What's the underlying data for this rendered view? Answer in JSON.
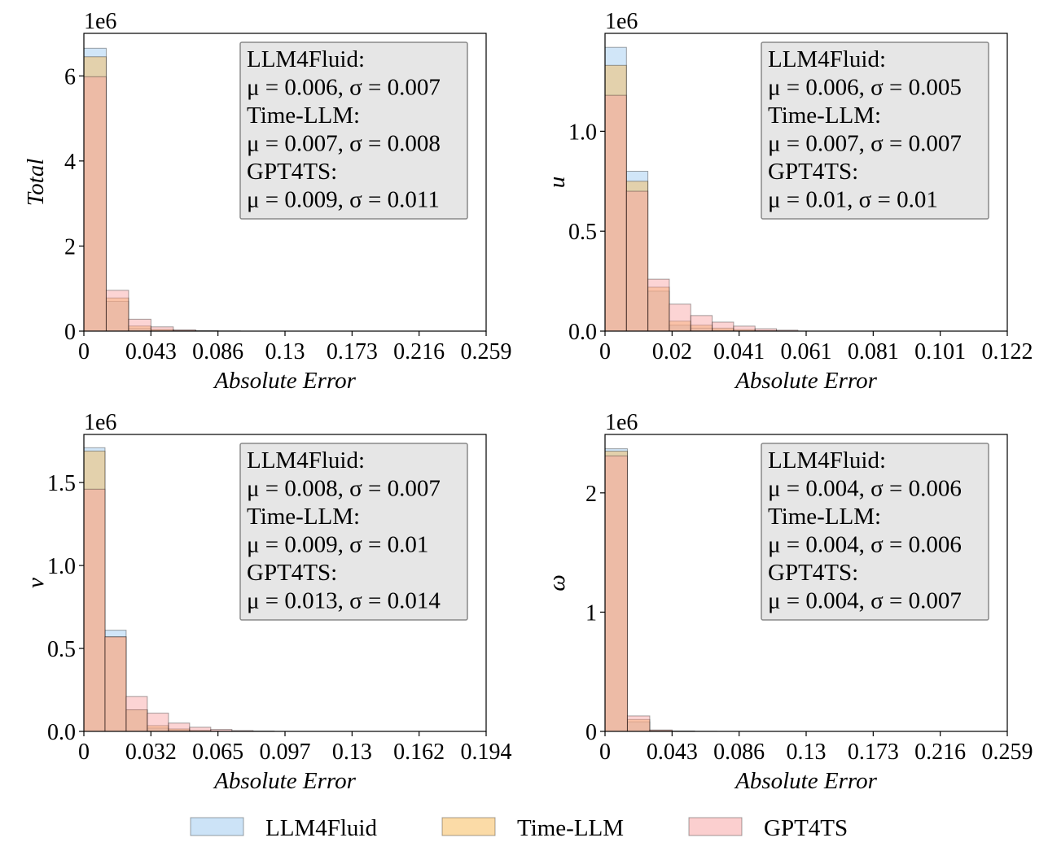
{
  "legend": {
    "entries": [
      {
        "label": "LLM4Fluid",
        "color": "#99c8f0"
      },
      {
        "label": "Time-LLM",
        "color": "#f8b850"
      },
      {
        "label": "GPT4TS",
        "color": "#f8a0a0"
      }
    ]
  },
  "chart_data": [
    {
      "type": "histogram",
      "ylabel": "Total",
      "xlabel": "Absolute Error",
      "y_scale_label": "1e6",
      "x_tick_labels": [
        "0",
        "0.043",
        "0.086",
        "0.13",
        "0.173",
        "0.216",
        "0.259"
      ],
      "xlim": [
        0,
        0.259
      ],
      "ylim": [
        0,
        7.0
      ],
      "y_ticks": [
        0,
        2,
        4,
        6
      ],
      "y_tick_labels": [
        "0",
        "2",
        "4",
        "6"
      ],
      "bin_width": 0.0144,
      "series": [
        {
          "name": "LLM4Fluid",
          "values": [
            6.65,
            0.7,
            0.06,
            0.02,
            0.01,
            0,
            0
          ]
        },
        {
          "name": "Time-LLM",
          "values": [
            6.45,
            0.78,
            0.12,
            0.04,
            0.015,
            0.005,
            0
          ]
        },
        {
          "name": "GPT4TS",
          "values": [
            5.98,
            0.96,
            0.28,
            0.1,
            0.03,
            0.01,
            0.005
          ]
        }
      ],
      "stats_box": [
        "LLM4Fluid:",
        "μ = 0.006, σ = 0.007",
        "Time-LLM:",
        "μ = 0.007, σ = 0.008",
        "GPT4TS:",
        "μ = 0.009, σ = 0.011"
      ]
    },
    {
      "type": "histogram",
      "ylabel": "u",
      "xlabel": "Absolute Error",
      "y_scale_label": "1e6",
      "x_tick_labels": [
        "0",
        "0.02",
        "0.041",
        "0.061",
        "0.081",
        "0.101",
        "0.122"
      ],
      "xlim": [
        0,
        0.122
      ],
      "ylim": [
        0,
        1.49
      ],
      "y_ticks": [
        0,
        0.5,
        1.0
      ],
      "y_tick_labels": [
        "0.0",
        "0.5",
        "1.0"
      ],
      "bin_width": 0.0065,
      "series": [
        {
          "name": "LLM4Fluid",
          "values": [
            1.42,
            0.8,
            0.2,
            0.03,
            0.015,
            0.005,
            0.002,
            0.001
          ]
        },
        {
          "name": "Time-LLM",
          "values": [
            1.33,
            0.75,
            0.22,
            0.05,
            0.03,
            0.015,
            0.008,
            0.003
          ]
        },
        {
          "name": "GPT4TS",
          "values": [
            1.18,
            0.7,
            0.26,
            0.135,
            0.078,
            0.045,
            0.025,
            0.012,
            0.005
          ]
        }
      ],
      "stats_box": [
        "LLM4Fluid:",
        "μ = 0.006, σ = 0.005",
        "Time-LLM:",
        "μ = 0.007, σ = 0.007",
        "GPT4TS:",
        "μ = 0.01, σ = 0.01"
      ]
    },
    {
      "type": "histogram",
      "ylabel": "v",
      "xlabel": "Absolute Error",
      "y_scale_label": "1e6",
      "x_tick_labels": [
        "0",
        "0.032",
        "0.065",
        "0.097",
        "0.13",
        "0.162",
        "0.194"
      ],
      "xlim": [
        0,
        0.194
      ],
      "ylim": [
        0,
        1.79
      ],
      "y_ticks": [
        0,
        0.5,
        1.0,
        1.5
      ],
      "y_tick_labels": [
        "0.0",
        "0.5",
        "1.0",
        "1.5"
      ],
      "bin_width": 0.0102,
      "series": [
        {
          "name": "LLM4Fluid",
          "values": [
            1.71,
            0.61,
            0.13,
            0.02,
            0.008,
            0.003
          ]
        },
        {
          "name": "Time-LLM",
          "values": [
            1.69,
            0.57,
            0.13,
            0.035,
            0.015,
            0.006,
            0.002
          ]
        },
        {
          "name": "GPT4TS",
          "values": [
            1.46,
            0.57,
            0.21,
            0.11,
            0.05,
            0.025,
            0.012,
            0.005,
            0.002
          ]
        }
      ],
      "stats_box": [
        "LLM4Fluid:",
        "μ = 0.008, σ = 0.007",
        "Time-LLM:",
        "μ = 0.009, σ = 0.01",
        "GPT4TS:",
        "μ = 0.013, σ = 0.014"
      ]
    },
    {
      "type": "histogram",
      "ylabel": "ω",
      "xlabel": "Absolute Error",
      "y_scale_label": "1e6",
      "x_tick_labels": [
        "0",
        "0.043",
        "0.086",
        "0.13",
        "0.173",
        "0.216",
        "0.259"
      ],
      "xlim": [
        0,
        0.259
      ],
      "ylim": [
        0,
        2.49
      ],
      "y_ticks": [
        0,
        1,
        2
      ],
      "y_tick_labels": [
        "0",
        "1",
        "2"
      ],
      "bin_width": 0.0144,
      "series": [
        {
          "name": "LLM4Fluid",
          "values": [
            2.37,
            0.08,
            0.005
          ]
        },
        {
          "name": "Time-LLM",
          "values": [
            2.35,
            0.1,
            0.008,
            0.002
          ]
        },
        {
          "name": "GPT4TS",
          "values": [
            2.31,
            0.13,
            0.012,
            0.003,
            0.001
          ]
        }
      ],
      "stats_box": [
        "LLM4Fluid:",
        "μ = 0.004, σ = 0.006",
        "Time-LLM:",
        "μ = 0.004, σ = 0.006",
        "GPT4TS:",
        "μ = 0.004, σ = 0.007"
      ]
    }
  ]
}
